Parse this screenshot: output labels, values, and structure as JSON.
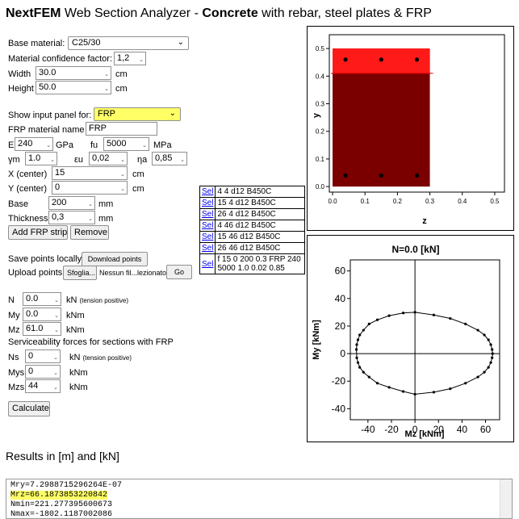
{
  "title": {
    "brand": "NextFEM",
    "text1": " Web Section Analyzer - ",
    "bold2": "Concrete",
    "text2": " with rebar, steel plates & FRP"
  },
  "form": {
    "base_material_label": "Base material:",
    "base_material_value": "C25/30",
    "confidence_label": "Material confidence factor:",
    "confidence_value": "1,2",
    "width_label": "Width",
    "width_value": "30.0",
    "width_unit": "cm",
    "height_label": "Height",
    "height_value": "50.0",
    "height_unit": "cm",
    "show_panel_label": "Show input panel for:",
    "show_panel_value": "FRP",
    "frp_name_label": "FRP material name",
    "frp_name_value": "FRP",
    "e_label": "E",
    "e_value": "240",
    "e_unit": "GPa",
    "fu_label": "fu",
    "fu_value": "5000",
    "fu_unit": "MPa",
    "gm_label": "γm",
    "gm_value": "1.0",
    "eu_label": "εu",
    "eu_value": "0,02",
    "na_label": "ηa",
    "na_value": "0,85",
    "xc_label": "X (center)",
    "xc_value": "15",
    "xc_unit": "cm",
    "yc_label": "Y (center)",
    "yc_value": "0",
    "yc_unit": "cm",
    "base_label": "Base",
    "base_value": "200",
    "base_unit": "mm",
    "thk_label": "Thickness",
    "thk_value": "0,3",
    "thk_unit": "mm",
    "add_frp": "Add FRP strip",
    "remove": "Remove",
    "save_label": "Save points locally",
    "download": "Download points",
    "upload_label": "Upload points",
    "browse": "Sfoglia...",
    "no_file": "Nessun fil...lezionato.",
    "go": "Go",
    "n_label": "N",
    "n_value": "0.0",
    "n_unit": "kN",
    "n_note": "(tension positive)",
    "my_label": "My",
    "my_value": "0.0",
    "my_unit": "kNm",
    "mz_label": "Mz",
    "mz_value": "61.0",
    "mz_unit": "kNm",
    "sls_label": "Serviceability forces for sections with FRP",
    "ns_label": "Ns",
    "ns_value": "0",
    "ns_unit": "kN",
    "ns_note": "(tension positive)",
    "mys_label": "Mys",
    "mys_value": "0",
    "mys_unit": "kNm",
    "mzs_label": "Mzs",
    "mzs_value": "44",
    "mzs_unit": "kNm",
    "calculate": "Calculate"
  },
  "elements": [
    {
      "sel": "Sel",
      "desc": "4 4 d12 B450C"
    },
    {
      "sel": "Sel",
      "desc": "15 4 d12 B450C"
    },
    {
      "sel": "Sel",
      "desc": "26 4 d12 B450C"
    },
    {
      "sel": "Sel",
      "desc": "4 46 d12 B450C"
    },
    {
      "sel": "Sel",
      "desc": "15 46 d12 B450C"
    },
    {
      "sel": "Sel",
      "desc": "26 46 d12 B450C"
    },
    {
      "sel": "Sel",
      "desc": "f 15 0 200 0.3 FRP 240 5000 1.0 0.02 0.85"
    }
  ],
  "results_title": "Results in [m] and [kN]",
  "results_lines": [
    "Mry=7.2988715296264E-07",
    "Mrz=66.1873853220842",
    "Nmin=221.277395600673",
    "Nmax=-1802.1187002086"
  ],
  "section_plot": {
    "xlabel": "z",
    "ylabel": "y",
    "xticks": [
      "0.0",
      "0.1",
      "0.2",
      "0.3",
      "0.4",
      "0.5"
    ],
    "yticks": [
      "0.0",
      "0.1",
      "0.2",
      "0.3",
      "0.4",
      "0.5"
    ],
    "colors": {
      "concrete": "#7a0000",
      "top": "#ff1a1a",
      "bar": "#000000"
    }
  },
  "chart_data": {
    "type": "scatter",
    "title": "N=0.0 [kN]",
    "xlabel": "Mz [kNm]",
    "ylabel": "My [kNm]",
    "xlim": [
      -55,
      72
    ],
    "ylim": [
      -48,
      68
    ],
    "xticks": [
      -40,
      -20,
      0,
      20,
      40,
      60
    ],
    "yticks": [
      -40,
      -20,
      0,
      20,
      40,
      60
    ],
    "x": [
      66,
      65.6,
      64.5,
      62.5,
      59,
      53.5,
      43,
      30,
      16,
      0,
      -10,
      -22,
      -32,
      -39,
      -43.8,
      -47,
      -48.5,
      -49.5,
      -49.8,
      -49.5,
      -48.5,
      -47,
      -43.8,
      -39,
      -32,
      -22,
      -10,
      0,
      16,
      30,
      43,
      53.5,
      59,
      62.5,
      64.5,
      65.6
    ],
    "y": [
      0,
      3,
      6.5,
      10,
      13.5,
      17,
      21.5,
      25.5,
      28,
      30,
      29.5,
      27.5,
      24.5,
      21.5,
      17,
      13.5,
      10,
      6.5,
      3,
      -3,
      -6.5,
      -10,
      -13.5,
      -17,
      -21.5,
      -24.5,
      -27.5,
      -29.5,
      -28,
      -25.5,
      -21.5,
      -17,
      -13.5,
      -10,
      -6.5,
      -3
    ]
  }
}
